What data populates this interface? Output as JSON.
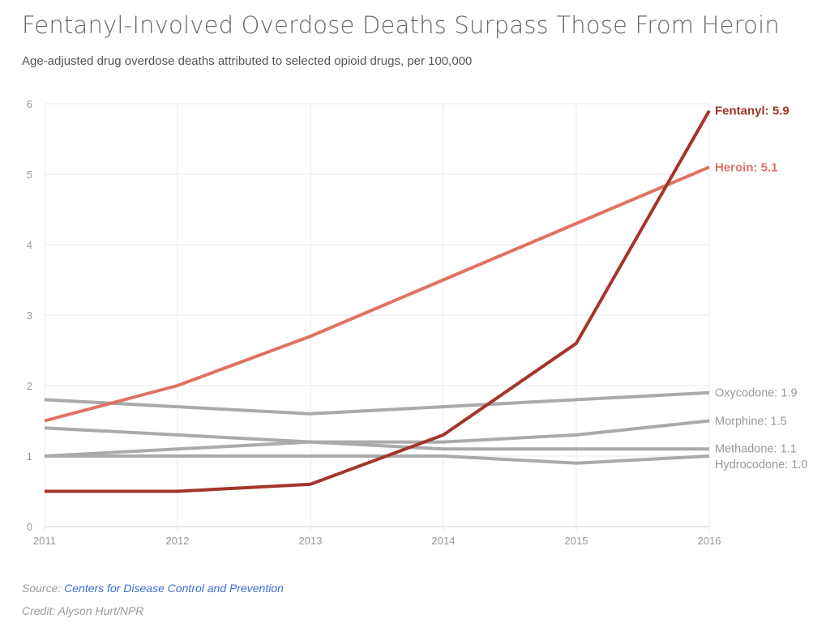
{
  "title": "Fentanyl-Involved Overdose Deaths Surpass Those From Heroin",
  "subtitle": "Age-adjusted drug overdose deaths attributed to selected opioid drugs, per 100,000",
  "source_label": "Source:",
  "source_link": "Centers for Disease Control and Prevention",
  "credit": "Credit: Alyson Hurt/NPR",
  "chart_data": {
    "type": "line",
    "title": "Fentanyl-Involved Overdose Deaths Surpass Those From Heroin",
    "xlabel": "",
    "ylabel": "",
    "x": [
      2011,
      2012,
      2013,
      2014,
      2015,
      2016
    ],
    "x_tick_labels": [
      "2011",
      "2012",
      "2013",
      "2014",
      "2015",
      "2016"
    ],
    "ylim": [
      0,
      6
    ],
    "y_tick_labels": [
      "0",
      "1",
      "2",
      "3",
      "4",
      "5",
      "6"
    ],
    "grid": true,
    "legend": "direct labels at right",
    "series": [
      {
        "name": "Oxycodone",
        "label": "Oxycodone: 1.9",
        "color": "#aaaaaa",
        "values": [
          1.8,
          1.7,
          1.6,
          1.7,
          1.8,
          1.9
        ]
      },
      {
        "name": "Methadone",
        "label": "Methadone: 1.1",
        "color": "#aaaaaa",
        "values": [
          1.4,
          1.3,
          1.2,
          1.1,
          1.1,
          1.1
        ]
      },
      {
        "name": "Morphine",
        "label": "Morphine: 1.5",
        "color": "#aaaaaa",
        "values": [
          1.0,
          1.1,
          1.2,
          1.2,
          1.3,
          1.5
        ]
      },
      {
        "name": "Hydrocodone",
        "label": "Hydrocodone: 1.0",
        "color": "#aaaaaa",
        "values": [
          1.0,
          1.0,
          1.0,
          1.0,
          0.9,
          1.0
        ]
      },
      {
        "name": "Heroin",
        "label": "Heroin: 5.1",
        "color": "#e07263",
        "values": [
          1.5,
          2.0,
          2.7,
          3.5,
          4.3,
          5.1
        ]
      },
      {
        "name": "Fentanyl",
        "label": "Fentanyl: 5.9",
        "color": "#a3352a",
        "values": [
          0.5,
          0.5,
          0.6,
          1.3,
          2.6,
          5.9
        ]
      }
    ]
  }
}
